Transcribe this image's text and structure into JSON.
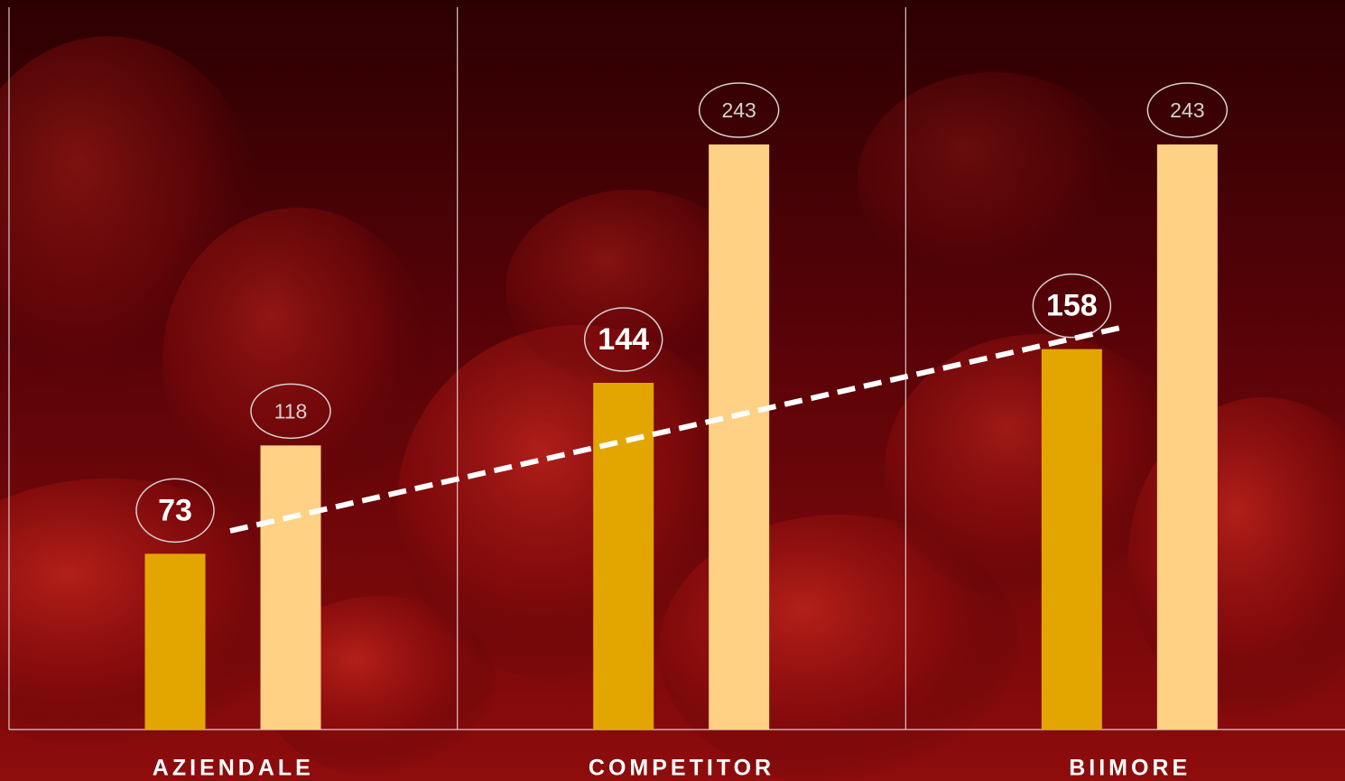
{
  "chart_data": {
    "type": "bar",
    "categories": [
      "AZIENDALE",
      "COMPETITOR",
      "BIIMORE"
    ],
    "series": [
      {
        "color": "#e3a600",
        "values": [
          73,
          144,
          158
        ]
      },
      {
        "color": "#ffd185",
        "values": [
          118,
          243,
          243
        ]
      }
    ],
    "ylim": [
      0,
      300
    ],
    "trendline": true
  }
}
